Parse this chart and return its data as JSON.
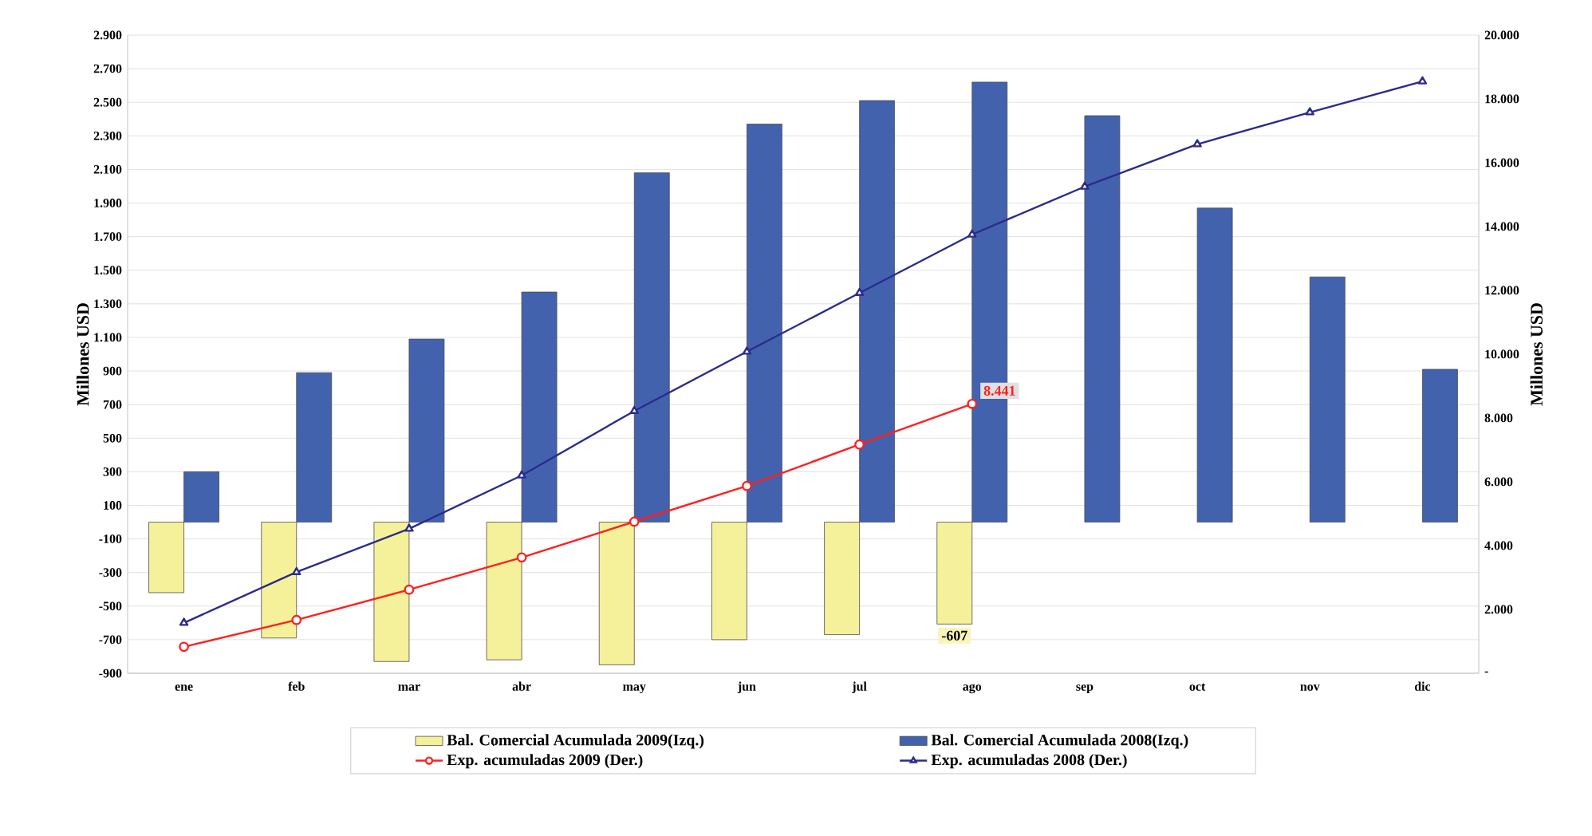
{
  "chart_data": {
    "type": "bar",
    "ylabel": "Millones USD",
    "y2label": "Millones USD",
    "categories": [
      "ene",
      "feb",
      "mar",
      "abr",
      "may",
      "jun",
      "jul",
      "ago",
      "sep",
      "oct",
      "nov",
      "dic"
    ],
    "series": [
      {
        "name": "Bal. Comercial Acumulada 2009(Izq.)",
        "type": "bar",
        "color": "#f5f19a",
        "values": [
          -420,
          -690,
          -830,
          -820,
          -850,
          -700,
          -670,
          -607,
          null,
          null,
          null,
          null
        ],
        "value_labels": [
          null,
          null,
          null,
          null,
          null,
          null,
          null,
          "-607",
          null,
          null,
          null,
          null
        ]
      },
      {
        "name": "Bal. Comercial Acumulada 2008(Izq.)",
        "color": "#4262ae",
        "values": [
          300,
          890,
          1090,
          1370,
          2080,
          2370,
          2510,
          2620,
          2420,
          1870,
          1460,
          910
        ]
      },
      {
        "name": "Exp. acumuladas 2009 (Der.)",
        "type": "line",
        "axis": "y2",
        "marker": "circle",
        "color": "#ff2020",
        "values": [
          830,
          1670,
          2620,
          3630,
          4750,
          5870,
          7170,
          8441,
          null,
          null,
          null,
          null
        ],
        "value_labels": [
          null,
          null,
          null,
          null,
          null,
          null,
          null,
          "8.441",
          null,
          null,
          null,
          null
        ]
      },
      {
        "name": "Exp. acumuladas 2008 (Der.)",
        "type": "line",
        "axis": "y2",
        "marker": "triangle",
        "color": "#2b2b8c",
        "values": [
          1580,
          3170,
          4530,
          6200,
          8220,
          10080,
          11920,
          13750,
          15250,
          16580,
          17580,
          18550
        ]
      }
    ],
    "ylim": [
      -900,
      2900
    ],
    "yticks": [
      -900,
      -700,
      -500,
      -300,
      -100,
      100,
      300,
      500,
      700,
      900,
      {
        "value": 1100,
        "label": "1.100"
      },
      {
        "value": 1300,
        "label": "1.300"
      },
      {
        "value": 1500,
        "label": "1.500"
      },
      {
        "value": 1700,
        "label": "1.700"
      },
      {
        "value": 1900,
        "label": "1.900"
      },
      {
        "value": 2100,
        "label": "2.100"
      },
      {
        "value": 2300,
        "label": "2.300"
      },
      {
        "value": 2500,
        "label": "2.500"
      },
      {
        "value": 2700,
        "label": "2.700"
      },
      {
        "value": 2900,
        "label": "2.900"
      }
    ],
    "y2lim": [
      0,
      20000
    ],
    "y2ticks": [
      {
        "value": 0,
        "label": "-"
      },
      {
        "value": 2000,
        "label": "2.000"
      },
      {
        "value": 4000,
        "label": "4.000"
      },
      {
        "value": 6000,
        "label": "6.000"
      },
      {
        "value": 8000,
        "label": "8.000"
      },
      {
        "value": 10000,
        "label": "10.000"
      },
      {
        "value": 12000,
        "label": "12.000"
      },
      {
        "value": 14000,
        "label": "14.000"
      },
      {
        "value": 16000,
        "label": "16.000"
      },
      {
        "value": 18000,
        "label": "18.000"
      },
      {
        "value": 20000,
        "label": "20.000"
      }
    ],
    "grid": "y",
    "legend": "bottom"
  }
}
